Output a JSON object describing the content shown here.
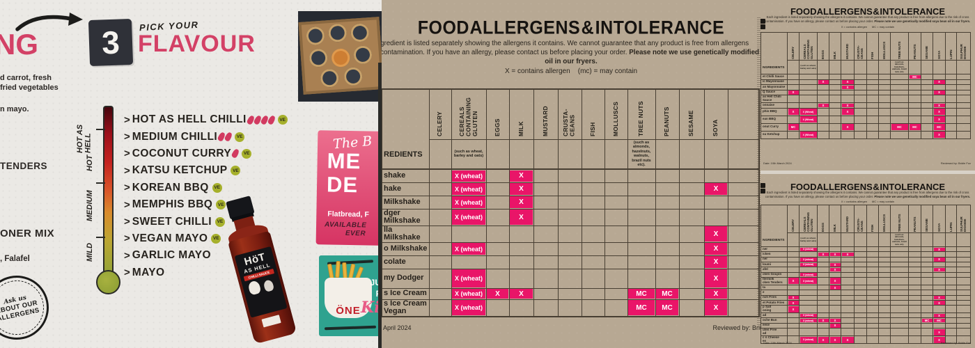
{
  "colors": {
    "magenta": "#E91568",
    "brand_pink": "#D34166",
    "kraft": "#B7A893",
    "paper": "#EBE9E5",
    "teal": "#2FA28F",
    "badge_green": "#A6B02B",
    "ink": "#26221D"
  },
  "left_panel": {
    "heading_fragment": "NG",
    "step_number": "3",
    "step_label_top": "PICK YOUR",
    "step_label_main": "FLAVOUR",
    "fragments": {
      "line1": "d carrot, fresh",
      "line2": "fried vegetables",
      "line3": "n mayo.",
      "line4": "TENDERS",
      "line5": "ONER MIX",
      "line6": ", Falafel"
    },
    "thermometer_labels": [
      "HOT AS\nHELL",
      "HOT",
      "MEDIUM",
      "MILD"
    ],
    "flavours": [
      {
        "label": "HOT AS HELL CHILLI",
        "chillies": 4,
        "badge": "VE"
      },
      {
        "label": "MEDIUM CHILLI",
        "chillies": 2,
        "badge": "VE"
      },
      {
        "label": "COCONUT CURRY",
        "chillies": 1,
        "badge": "VE"
      },
      {
        "label": "KATSU KETCHUP",
        "chillies": 0,
        "badge": "VE"
      },
      {
        "label": "KOREAN BBQ",
        "chillies": 0,
        "badge": "VE"
      },
      {
        "label": "MEMPHIS BBQ",
        "chillies": 0,
        "badge": "VE"
      },
      {
        "label": "SWEET CHILLI",
        "chillies": 0,
        "badge": "VE"
      },
      {
        "label": "VEGAN MAYO",
        "chillies": 0,
        "badge": "VE"
      },
      {
        "label": "GARLIC MAYO",
        "chillies": 0,
        "badge": null
      },
      {
        "label": "MAYO",
        "chillies": 0,
        "badge": null
      }
    ],
    "stamp": {
      "line1": "Ask us",
      "line2": "ABOUT OUR",
      "line3": "ALLERGENS"
    },
    "bottle": {
      "line1": "HöT",
      "line2": "AS HELL",
      "line3": "CHILLI SAUCE"
    },
    "pink_sticker": {
      "script": "The B",
      "big1": "ME",
      "big2": "DE",
      "sub1": "Flatbread, F",
      "sub2": "AVAILABLE",
      "sub3": "EVER"
    },
    "teal_sticker": {
      "bucket": "ÖNE",
      "script": "Ki",
      "side1": "JU",
      "side2": "F"
    }
  },
  "main_table": {
    "title": "FOOD ALLERGENS & INTOLERANCE",
    "intro_line1": "gredient is listed separately showing the allergens it contains. We cannot guarantee that any product is free from allergens",
    "intro_line2": "s contamination. If you have an allergy, please contact us before placing your order.",
    "intro_line2_bold": "Please note we use genetically modified",
    "intro_line3_bold": "oil in our fryers.",
    "legend": "X = contains allergen    (mc) = may contain",
    "ingredients_header": "REDIENTS",
    "columns": [
      {
        "id": "celery",
        "label": "CELERY"
      },
      {
        "id": "cereals",
        "label": "CEREALS\nCONTAINING\nGLUTEN",
        "note": "(such as wheat, barley and oats)"
      },
      {
        "id": "eggs",
        "label": "EGGS"
      },
      {
        "id": "milk",
        "label": "MILK"
      },
      {
        "id": "mustard",
        "label": "MUSTARD"
      },
      {
        "id": "crustaceans",
        "label": "CRUSTA-\nCEANS"
      },
      {
        "id": "fish",
        "label": "FISH"
      },
      {
        "id": "molluscs",
        "label": "MOLLUSCS"
      },
      {
        "id": "treenuts",
        "label": "TREE NUTS",
        "note": "(such as almonds, hazelnuts, walnuts, brazil nuts etc)."
      },
      {
        "id": "peanuts",
        "label": "PEANUTS"
      },
      {
        "id": "sesame",
        "label": "SESAME"
      },
      {
        "id": "soya",
        "label": "SOYA"
      },
      {
        "id": "extra",
        "label": ""
      }
    ],
    "rows": [
      {
        "label": "shake",
        "marks": {
          "cereals": "X (wheat)",
          "milk": "X"
        }
      },
      {
        "label": "hake",
        "marks": {
          "cereals": "X (wheat)",
          "milk": "X",
          "soya": "X"
        }
      },
      {
        "label": "Milkshake",
        "marks": {
          "cereals": "X (wheat)",
          "milk": "X"
        }
      },
      {
        "label": "dger Milkshake",
        "marks": {
          "cereals": "X (wheat)",
          "milk": "X"
        }
      },
      {
        "label": "lla Milkshake",
        "marks": {
          "soya": "X"
        }
      },
      {
        "label": "o Milkshake",
        "marks": {
          "cereals": "X (wheat)",
          "soya": "X"
        }
      },
      {
        "label": "colate",
        "marks": {
          "soya": "X"
        }
      },
      {
        "label": "my Dodger",
        "size": "tall",
        "marks": {
          "cereals": "X (wheat)",
          "soya": "X"
        }
      },
      {
        "label": "s Ice Cream",
        "size": "short",
        "marks": {
          "cereals": "X (wheat)",
          "eggs": "X",
          "milk": "X",
          "treenuts": "MC",
          "peanuts": "MC",
          "soya": "X"
        }
      },
      {
        "label": "s Ice Cream Vegan",
        "size": "short",
        "marks": {
          "cereals": "X (wheat)",
          "treenuts": "MC",
          "peanuts": "MC",
          "soya": "X"
        }
      }
    ],
    "footer_left": "April 2024",
    "footer_right": "Reviewed by: Brid"
  },
  "mini_columns": [
    {
      "id": "celery",
      "label": "CELERY"
    },
    {
      "id": "cereals",
      "label": "CEREALS\nCONTAINING\nGLUTEN",
      "note": "(such as wheat, barley and oats)"
    },
    {
      "id": "eggs",
      "label": "EGGS"
    },
    {
      "id": "milk",
      "label": "MILK"
    },
    {
      "id": "mustard",
      "label": "MUSTARD"
    },
    {
      "id": "crustaceans",
      "label": "CRUSTA-\nCEANS"
    },
    {
      "id": "fish",
      "label": "FISH"
    },
    {
      "id": "molluscs",
      "label": "MOLLUSCS"
    },
    {
      "id": "treenuts",
      "label": "TREE NUTS",
      "note": "(such as almonds, hazelnuts, walnuts, brazil nuts etc)."
    },
    {
      "id": "peanuts",
      "label": "PEANUTS"
    },
    {
      "id": "sesame",
      "label": "SESAME"
    },
    {
      "id": "soya",
      "label": "SOYA"
    },
    {
      "id": "lupin",
      "label": "LUPIN"
    },
    {
      "id": "sulphur",
      "label": "SULPHUR\nDIOXIDE"
    }
  ],
  "sauce_table": {
    "title": "FOOD ALLERGENS & INTOLERANCE",
    "intro_line1": "Each ingredient is listed separately showing the allergens it contains. We cannot guarantee that any product is free from allergens due to the risk of cross",
    "intro_line2": "contamination. If you have an allergy, please contact us before placing your order.",
    "intro_line2_bold": "Please note we use genetically modified soya bean oil in our fryers.",
    "legend": "X = contains allergen      MC = may contain",
    "ingredients_header": "NGREDIENTS",
    "rows": [
      {
        "label": "et Chilli Sauce",
        "marks": {
          "peanuts": "MC"
        }
      },
      {
        "label": "ic Mayonnaise",
        "marks": {
          "eggs": "X",
          "mustard": "X",
          "soya": "X"
        }
      },
      {
        "label": "an Mayonnaise",
        "marks": {
          "mustard": "X"
        }
      },
      {
        "label": "Q Sauce",
        "marks": {
          "celery": "X",
          "soya": "X"
        }
      },
      {
        "label": "as Hell Chilli Sauce",
        "marks": {}
      },
      {
        "label": "onnaise",
        "marks": {
          "eggs": "X",
          "mustard": "X",
          "soya": "X"
        }
      },
      {
        "label": "phis BBQ",
        "size": "tall",
        "marks": {
          "celery": "X",
          "cereals": "X (Wheat)",
          "mustard": "X",
          "soya": "X"
        }
      },
      {
        "label": "ean BBQ",
        "size": "tall",
        "marks": {
          "cereals": "X (Wheat)",
          "soya": "X"
        }
      },
      {
        "label": "onut Curry",
        "size": "tall",
        "marks": {
          "celery": "MC",
          "mustard": "X",
          "treenuts": "MC",
          "peanuts": "MC",
          "soya": "MC"
        }
      },
      {
        "label": "su Ketchup",
        "size": "tall",
        "marks": {
          "cereals": "X (Wheat)",
          "soya": "X"
        }
      }
    ],
    "footer_left": "Date: 10th March 2024",
    "footer_right": "Reviewed by: Bridie Fox"
  },
  "mains_table": {
    "title": "FOOD ALLERGENS & INTOLERANCE",
    "intro_line1": "Each ingredient is listed separately showing the allergens it contains. We cannot guarantee that any product is free from allergens due to the risk of cross",
    "intro_line2": "contamination. If you have an allergy, please contact us before placing your order.",
    "intro_line2_bold": "Please note we use genetically modified soya bean oil in our fryers.",
    "legend": "X = contains allergen      MC = may contain",
    "ingredients_header": "NGREDIENTS",
    "rows": [
      {
        "label": "ner",
        "marks": {
          "cereals": "X (wheat)",
          "soya": "X"
        }
      },
      {
        "label": "icken",
        "marks": {
          "eggs": "X",
          "milk": "X",
          "mustard": "X"
        }
      },
      {
        "label": "ner",
        "marks": {
          "cereals": "X (wheat)",
          "soya": "X"
        }
      },
      {
        "label": "loumi",
        "marks": {
          "cereals": "X (wheat)",
          "milk": "X"
        }
      },
      {
        "label": "afel",
        "marks": {
          "milk": "X",
          "soya": "X"
        }
      },
      {
        "label": "cken Goujon",
        "marks": {
          "cereals": "X (wheat)"
        }
      },
      {
        "label": "ttermilk\ncken Tenders",
        "size": "tall",
        "marks": {
          "celery": "X",
          "cereals": "X (wheat)",
          "milk": "X"
        }
      },
      {
        "label": "ta",
        "marks": {
          "milk": "X"
        }
      },
      {
        "label": "e",
        "marks": {}
      },
      {
        "label": "nch Fries",
        "marks": {
          "celery": "X",
          "soya": "X"
        }
      },
      {
        "label": "et Potato Fries",
        "marks": {
          "celery": "X",
          "soya": "X"
        }
      },
      {
        "label": "p Salt\noning",
        "size": "tall",
        "marks": {
          "celery": "X"
        }
      },
      {
        "label": "ad",
        "marks": {
          "cereals": "X (wheat)",
          "soya": "X"
        }
      },
      {
        "label": "oche Bun",
        "marks": {
          "cereals": "X (wheat)",
          "eggs": "X",
          "milk": "X",
          "sesame": "MC",
          "soya": "MC"
        }
      },
      {
        "label": "eese",
        "marks": {
          "milk": "X"
        }
      },
      {
        "label": "uten Free\nad",
        "size": "tall",
        "marks": {
          "soya": "X"
        }
      },
      {
        "label": "c n Cheese\nes",
        "size": "tall",
        "marks": {
          "cereals": "X (wheat)",
          "eggs": "X",
          "milk": "X",
          "mustard": "X",
          "soya": "X"
        }
      }
    ],
    "footer_left": "Date: 10th March 2024",
    "footer_right": "Reviewed by: Bridie Fox"
  }
}
